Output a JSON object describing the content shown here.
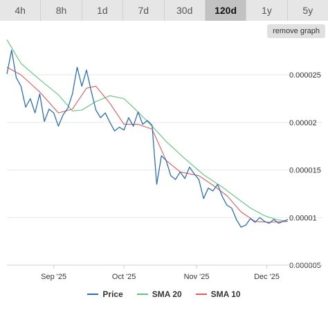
{
  "tabs": [
    {
      "label": "4h"
    },
    {
      "label": "8h"
    },
    {
      "label": "1d"
    },
    {
      "label": "7d"
    },
    {
      "label": "30d"
    },
    {
      "label": "120d",
      "active": true
    },
    {
      "label": "1y"
    },
    {
      "label": "5y"
    }
  ],
  "remove_graph_label": "remove graph",
  "colors": {
    "price": "#2a6eb5",
    "sma20": "#5ec47a",
    "sma10": "#e05a5a",
    "grid": "#e8e8e8",
    "axis": "#999999"
  },
  "chart_data": {
    "type": "line",
    "x_range": [
      "2025-08-12",
      "2025-12-10"
    ],
    "ylim": [
      5e-06,
      2.85e-05
    ],
    "y_ticks": [
      {
        "value": 5e-06,
        "label": "0.000005"
      },
      {
        "value": 1e-05,
        "label": "0.00001"
      },
      {
        "value": 1.5e-05,
        "label": "0.000015"
      },
      {
        "value": 2e-05,
        "label": "0.00002"
      },
      {
        "value": 2.5e-05,
        "label": "0.000025"
      }
    ],
    "x_ticks": [
      {
        "date": "2025-09-01",
        "label": "Sep '25"
      },
      {
        "date": "2025-10-01",
        "label": "Oct '25"
      },
      {
        "date": "2025-11-01",
        "label": "Nov '25"
      },
      {
        "date": "2025-12-01",
        "label": "Dec '25"
      }
    ],
    "grid": true,
    "legend_position": "bottom-center",
    "series": [
      {
        "name": "Price",
        "points": [
          [
            "2025-08-12",
            2.51e-05
          ],
          [
            "2025-08-14",
            2.76e-05
          ],
          [
            "2025-08-16",
            2.47e-05
          ],
          [
            "2025-08-18",
            2.38e-05
          ],
          [
            "2025-08-20",
            2.16e-05
          ],
          [
            "2025-08-22",
            2.25e-05
          ],
          [
            "2025-08-24",
            2.1e-05
          ],
          [
            "2025-08-26",
            2.3e-05
          ],
          [
            "2025-08-28",
            2.01e-05
          ],
          [
            "2025-08-30",
            2.14e-05
          ],
          [
            "2025-09-01",
            2.1e-05
          ],
          [
            "2025-09-03",
            1.96e-05
          ],
          [
            "2025-09-05",
            2.08e-05
          ],
          [
            "2025-09-07",
            2.15e-05
          ],
          [
            "2025-09-09",
            2.3e-05
          ],
          [
            "2025-09-11",
            2.58e-05
          ],
          [
            "2025-09-13",
            2.38e-05
          ],
          [
            "2025-09-15",
            2.55e-05
          ],
          [
            "2025-09-17",
            2.33e-05
          ],
          [
            "2025-09-19",
            2.13e-05
          ],
          [
            "2025-09-21",
            2.05e-05
          ],
          [
            "2025-09-23",
            2.1e-05
          ],
          [
            "2025-09-25",
            2e-05
          ],
          [
            "2025-09-27",
            1.91e-05
          ],
          [
            "2025-09-29",
            1.95e-05
          ],
          [
            "2025-10-01",
            1.92e-05
          ],
          [
            "2025-10-03",
            2.05e-05
          ],
          [
            "2025-10-05",
            1.96e-05
          ],
          [
            "2025-10-07",
            2.11e-05
          ],
          [
            "2025-10-09",
            1.98e-05
          ],
          [
            "2025-10-11",
            2.02e-05
          ],
          [
            "2025-10-13",
            1.97e-05
          ],
          [
            "2025-10-15",
            1.35e-05
          ],
          [
            "2025-10-17",
            1.65e-05
          ],
          [
            "2025-10-19",
            1.6e-05
          ],
          [
            "2025-10-21",
            1.44e-05
          ],
          [
            "2025-10-23",
            1.4e-05
          ],
          [
            "2025-10-25",
            1.48e-05
          ],
          [
            "2025-10-27",
            1.41e-05
          ],
          [
            "2025-10-29",
            1.53e-05
          ],
          [
            "2025-10-31",
            1.46e-05
          ],
          [
            "2025-11-02",
            1.4e-05
          ],
          [
            "2025-11-04",
            1.2e-05
          ],
          [
            "2025-11-06",
            1.31e-05
          ],
          [
            "2025-11-08",
            1.28e-05
          ],
          [
            "2025-11-10",
            1.35e-05
          ],
          [
            "2025-11-12",
            1.22e-05
          ],
          [
            "2025-11-14",
            1.13e-05
          ],
          [
            "2025-11-16",
            1.1e-05
          ],
          [
            "2025-11-18",
            9.8e-06
          ],
          [
            "2025-11-20",
            9e-06
          ],
          [
            "2025-11-22",
            9.2e-06
          ],
          [
            "2025-11-24",
            9.9e-06
          ],
          [
            "2025-11-26",
            9.5e-06
          ],
          [
            "2025-11-28",
            1e-05
          ],
          [
            "2025-11-30",
            9.6e-06
          ],
          [
            "2025-12-02",
            9.4e-06
          ],
          [
            "2025-12-04",
            9.8e-06
          ],
          [
            "2025-12-06",
            9.4e-06
          ],
          [
            "2025-12-08",
            9.6e-06
          ],
          [
            "2025-12-10",
            9.8e-06
          ]
        ]
      },
      {
        "name": "SMA 20",
        "points": [
          [
            "2025-08-12",
            2.87e-05
          ],
          [
            "2025-08-18",
            2.62e-05
          ],
          [
            "2025-08-26",
            2.45e-05
          ],
          [
            "2025-09-03",
            2.29e-05
          ],
          [
            "2025-09-09",
            2.12e-05
          ],
          [
            "2025-09-13",
            2.13e-05
          ],
          [
            "2025-09-19",
            2.22e-05
          ],
          [
            "2025-09-25",
            2.28e-05
          ],
          [
            "2025-10-01",
            2.25e-05
          ],
          [
            "2025-10-07",
            2.11e-05
          ],
          [
            "2025-10-13",
            1.96e-05
          ],
          [
            "2025-10-19",
            1.8e-05
          ],
          [
            "2025-10-27",
            1.62e-05
          ],
          [
            "2025-11-04",
            1.45e-05
          ],
          [
            "2025-11-12",
            1.32e-05
          ],
          [
            "2025-11-18",
            1.21e-05
          ],
          [
            "2025-11-24",
            1.1e-05
          ],
          [
            "2025-11-30",
            1.02e-05
          ],
          [
            "2025-12-05",
            9.8e-06
          ],
          [
            "2025-12-10",
            9.6e-06
          ]
        ]
      },
      {
        "name": "SMA 10",
        "points": [
          [
            "2025-08-12",
            2.58e-05
          ],
          [
            "2025-08-18",
            2.5e-05
          ],
          [
            "2025-08-26",
            2.32e-05
          ],
          [
            "2025-09-03",
            2.1e-05
          ],
          [
            "2025-09-09",
            2.14e-05
          ],
          [
            "2025-09-15",
            2.36e-05
          ],
          [
            "2025-09-19",
            2.38e-05
          ],
          [
            "2025-09-25",
            2.2e-05
          ],
          [
            "2025-10-01",
            1.98e-05
          ],
          [
            "2025-10-07",
            1.98e-05
          ],
          [
            "2025-10-13",
            1.93e-05
          ],
          [
            "2025-10-19",
            1.6e-05
          ],
          [
            "2025-10-25",
            1.48e-05
          ],
          [
            "2025-11-02",
            1.44e-05
          ],
          [
            "2025-11-08",
            1.34e-05
          ],
          [
            "2025-11-14",
            1.23e-05
          ],
          [
            "2025-11-20",
            1.06e-05
          ],
          [
            "2025-11-26",
            9.6e-06
          ],
          [
            "2025-12-02",
            9.5e-06
          ],
          [
            "2025-12-10",
            9.6e-06
          ]
        ]
      }
    ]
  }
}
